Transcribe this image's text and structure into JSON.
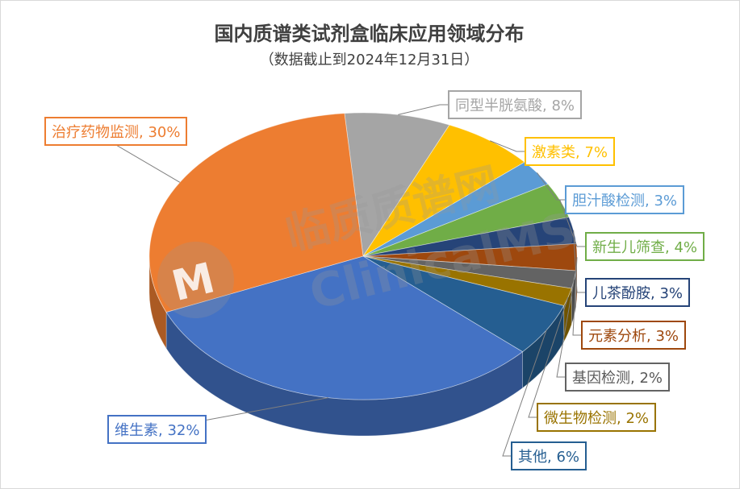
{
  "chart_data": {
    "type": "pie",
    "title": "国内质谱类试剂盒临床应用领域分布",
    "subtitle": "（数据截止到2024年12月31日）",
    "slices": [
      {
        "label": "同型半胱氨酸, 8%",
        "value": 8,
        "color": "#a5a5a5"
      },
      {
        "label": "激素类, 7%",
        "value": 7,
        "color": "#ffc000"
      },
      {
        "label": "胆汁酸检测, 3%",
        "value": 3,
        "color": "#5b9bd5"
      },
      {
        "label": "新生儿筛查, 4%",
        "value": 4,
        "color": "#70ad47"
      },
      {
        "label": "儿茶酚胺, 3%",
        "value": 3,
        "color": "#264478"
      },
      {
        "label": "元素分析, 3%",
        "value": 3,
        "color": "#9e480e"
      },
      {
        "label": "基因检测, 2%",
        "value": 2,
        "color": "#636363"
      },
      {
        "label": "微生物检测, 2%",
        "value": 2,
        "color": "#997300"
      },
      {
        "label": "其他, 6%",
        "value": 6,
        "color": "#255e91"
      },
      {
        "label": "维生素, 32%",
        "value": 32,
        "color": "#4472c4"
      },
      {
        "label": "治疗药物监测, 30%",
        "value": 30,
        "color": "#ed7d31"
      }
    ]
  },
  "watermark": {
    "cn": "临质质谱网",
    "en": "ClinicalMS"
  }
}
